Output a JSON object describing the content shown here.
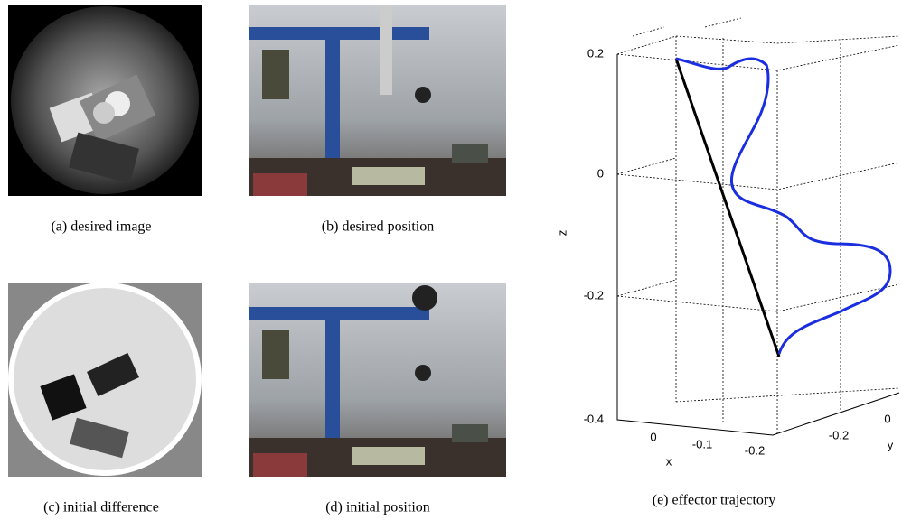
{
  "panels": [
    {
      "caption": "(a) desired image"
    },
    {
      "caption": "(b) desired position"
    },
    {
      "caption": "(c) initial difference"
    },
    {
      "caption": "(d) initial position"
    }
  ],
  "plot": {
    "caption": "(e) effector trajectory",
    "z_label": "z",
    "x_label": "x",
    "y_label": "y",
    "zticks": [
      0.2,
      0,
      -0.2,
      -0.4
    ],
    "xticks": [
      0,
      -0.1,
      -0.2
    ],
    "yticks": [
      -0.2,
      0
    ]
  }
}
